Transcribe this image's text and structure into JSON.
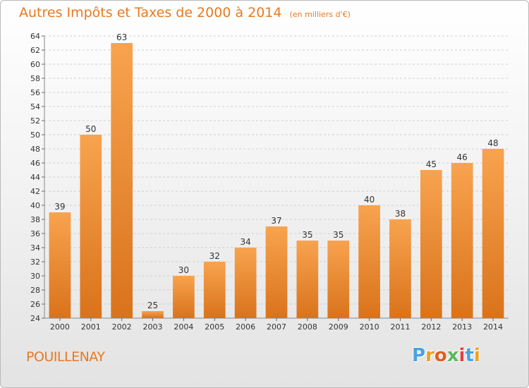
{
  "title": "Autres Impôts et Taxes de 2000 à 2014",
  "subtitle": "(en milliers d'€)",
  "commune": "POUILLENAY",
  "logo": {
    "letters": [
      "P",
      "r",
      "o",
      "x",
      "i",
      "t",
      "i"
    ],
    "colors": [
      "#4aa3df",
      "#f0a020",
      "#e06020",
      "#5cb85c",
      "#e04040",
      "#4aa3df",
      "#f0a020"
    ]
  },
  "colors": {
    "accent": "#e8791f",
    "bar_top": "#f8a34f",
    "bar_bottom": "#d9731b",
    "grid": "#cfcfcf"
  },
  "chart_data": {
    "type": "bar",
    "title": "Autres Impôts et Taxes de 2000 à 2014",
    "subtitle": "(en milliers d'€)",
    "categories": [
      "2000",
      "2001",
      "2002",
      "2003",
      "2004",
      "2005",
      "2006",
      "2007",
      "2008",
      "2009",
      "2010",
      "2011",
      "2012",
      "2013",
      "2014"
    ],
    "values": [
      39,
      50,
      63,
      25,
      30,
      32,
      34,
      37,
      35,
      35,
      40,
      38,
      45,
      46,
      48
    ],
    "ylim": [
      24,
      64
    ],
    "yticks": [
      24,
      26,
      28,
      30,
      32,
      34,
      36,
      38,
      40,
      42,
      44,
      46,
      48,
      50,
      52,
      54,
      56,
      58,
      60,
      62,
      64
    ],
    "grid": true,
    "xlabel": "",
    "ylabel": ""
  }
}
